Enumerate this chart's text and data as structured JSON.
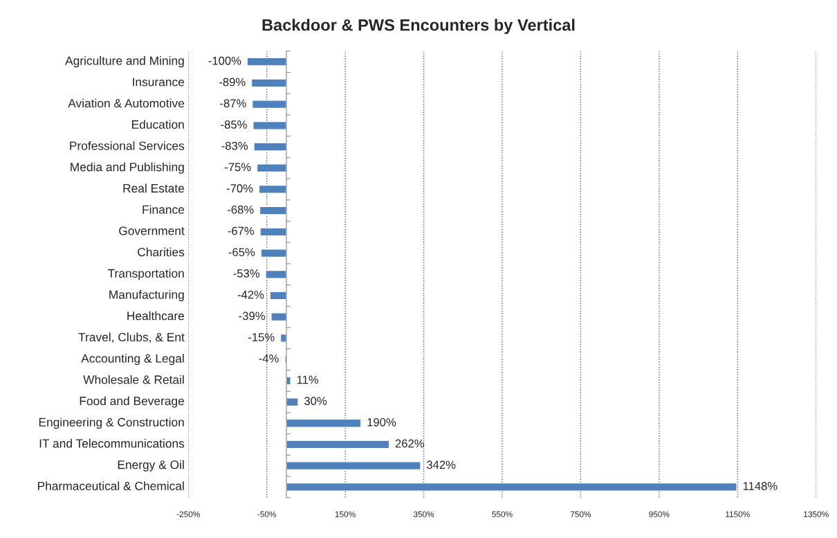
{
  "chart_data": {
    "type": "bar",
    "orientation": "horizontal",
    "title": "Backdoor & PWS Encounters by Vertical",
    "categories": [
      "Agriculture and Mining",
      "Insurance",
      "Aviation & Automotive",
      "Education",
      "Professional Services",
      "Media and Publishing",
      "Real Estate",
      "Finance",
      "Government",
      "Charities",
      "Transportation",
      "Manufacturing",
      "Healthcare",
      "Travel, Clubs, & Ent",
      "Accounting & Legal",
      "Wholesale & Retail",
      "Food and Beverage",
      "Engineering & Construction",
      "IT and Telecommunications",
      "Energy & Oil",
      "Pharmaceutical & Chemical"
    ],
    "series": [
      {
        "color": "#4f81bd",
        "values": [
          -100,
          -89,
          -87,
          -85,
          -83,
          -75,
          -70,
          -68,
          -67,
          -65,
          -53,
          -42,
          -39,
          -15,
          -4,
          11,
          30,
          190,
          262,
          342,
          1148
        ],
        "value_labels": [
          "-100%",
          "-89%",
          "-87%",
          "-85%",
          "-83%",
          "-75%",
          "-70%",
          "-68%",
          "-67%",
          "-65%",
          "-53%",
          "-42%",
          "-39%",
          "-15%",
          "-4%",
          "11%",
          "30%",
          "190%",
          "262%",
          "342%",
          "1148%"
        ]
      }
    ],
    "xlim": [
      -250,
      1350
    ],
    "xticks": [
      {
        "value": -250,
        "label": "-250%"
      },
      {
        "value": -50,
        "label": "-50%"
      },
      {
        "value": 150,
        "label": "150%"
      },
      {
        "value": 350,
        "label": "350%"
      },
      {
        "value": 550,
        "label": "550%"
      },
      {
        "value": 750,
        "label": "750%"
      },
      {
        "value": 950,
        "label": "950%"
      },
      {
        "value": 1150,
        "label": "1150%"
      },
      {
        "value": 1350,
        "label": "1350%"
      }
    ],
    "grid": "x",
    "legend": false
  }
}
